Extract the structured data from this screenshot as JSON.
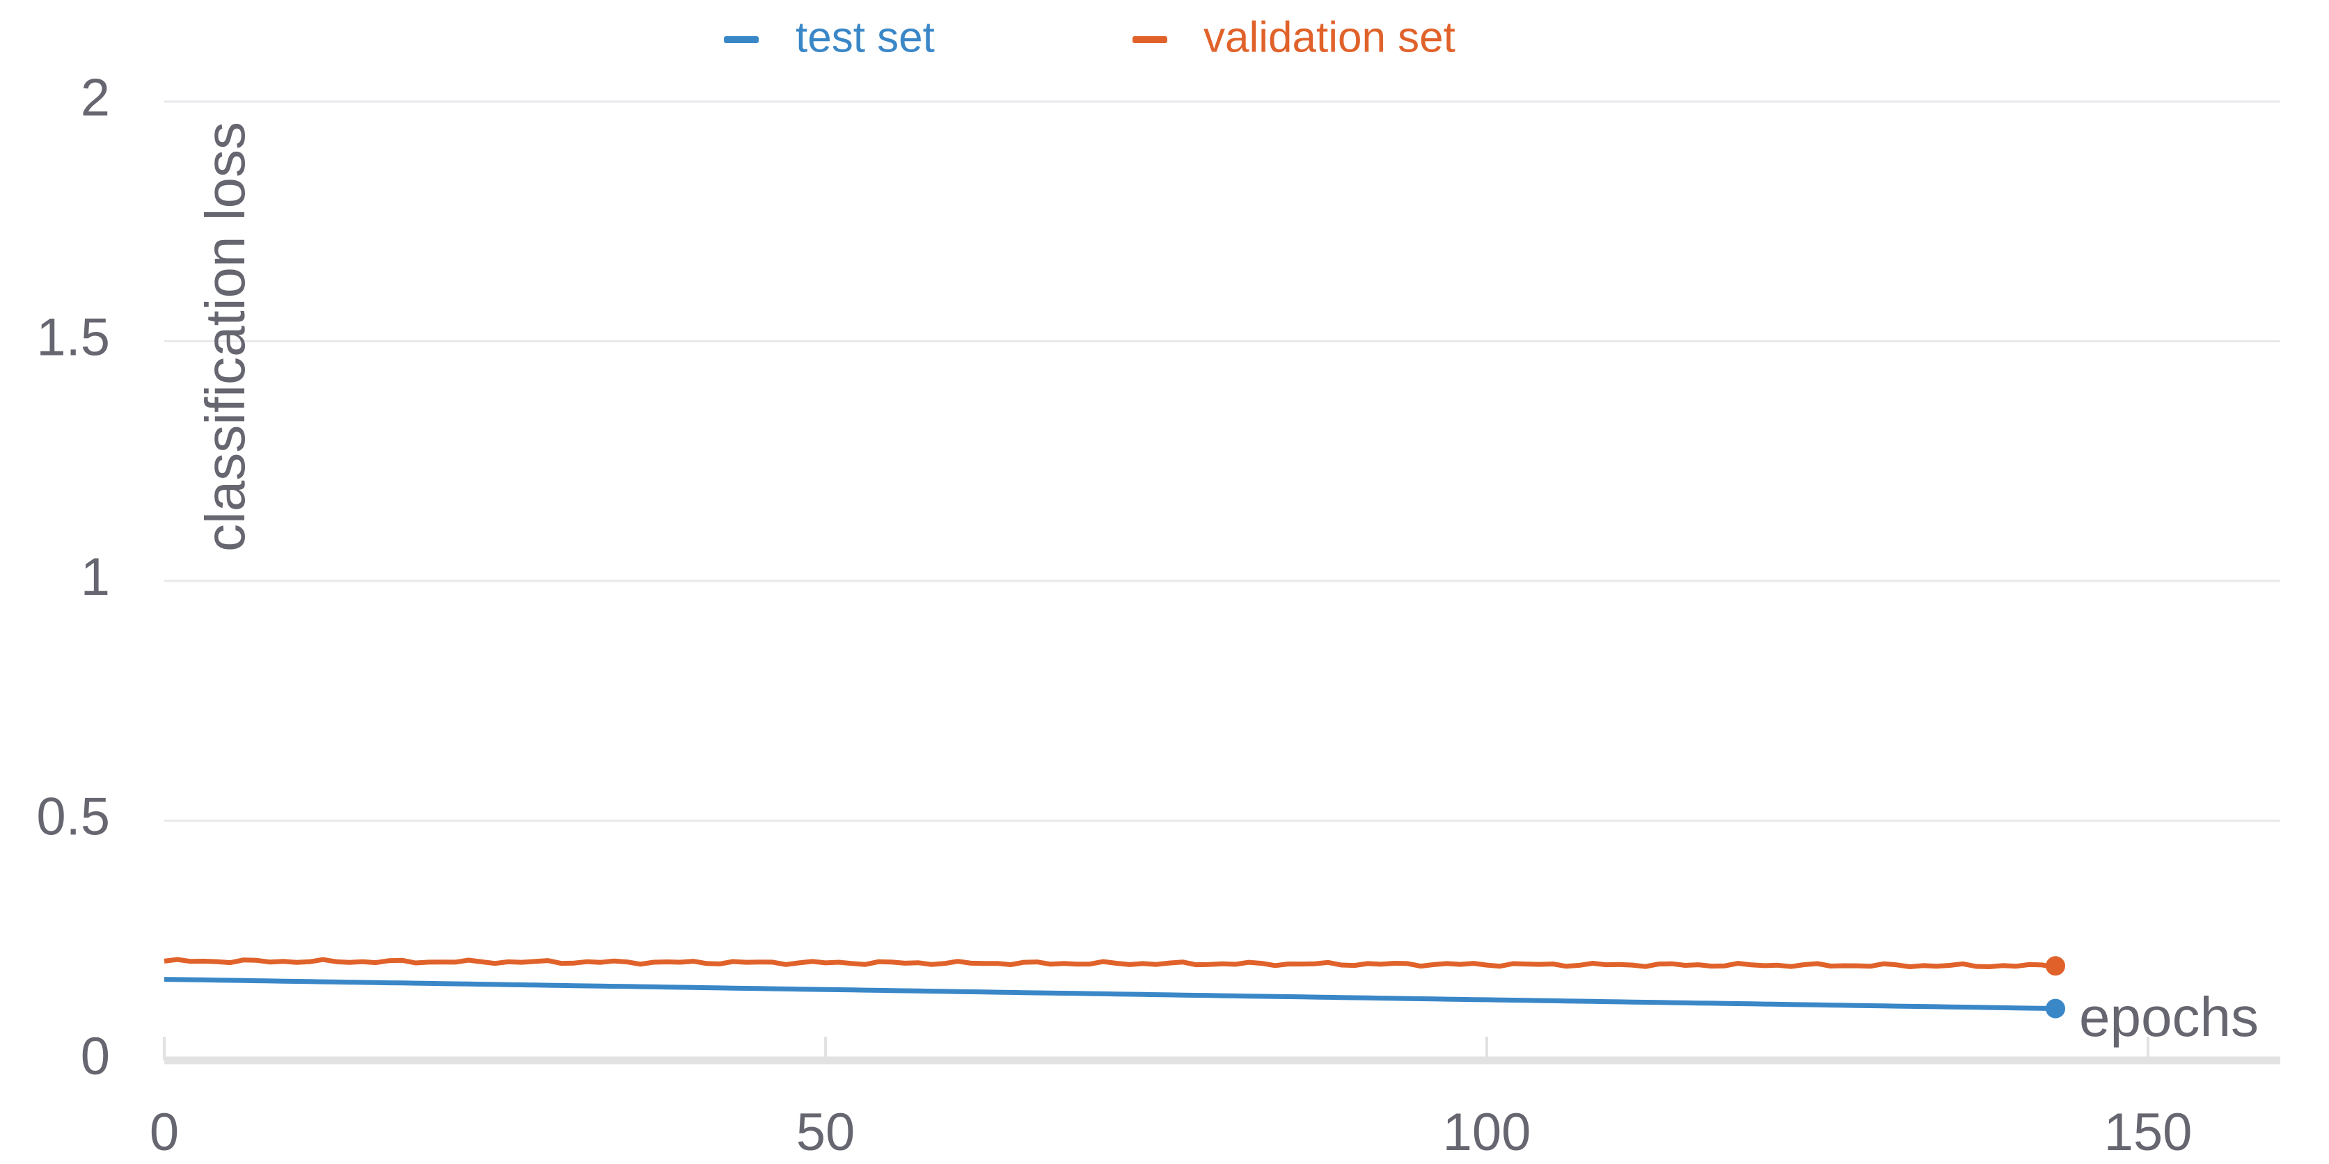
{
  "chart_data": {
    "type": "line",
    "title": "",
    "xlabel": "epochs",
    "ylabel": "classification loss",
    "xlim": [
      0,
      160
    ],
    "ylim": [
      0,
      2
    ],
    "x_ticks": [
      "0",
      "50",
      "100",
      "150"
    ],
    "y_ticks": [
      "0",
      "0.5",
      "1",
      "1.5",
      "2"
    ],
    "grid": true,
    "legend_position": "top-center",
    "series": [
      {
        "name": "test set",
        "color": "#3a87c8",
        "x_start": 0,
        "x_end": 143,
        "y_start": 0.169,
        "y_end": 0.108,
        "noise": 0
      },
      {
        "name": "validation set",
        "color": "#e0622a",
        "x_start": 0,
        "x_end": 143,
        "y_start": 0.207,
        "y_end": 0.197,
        "noise": 0.004
      }
    ]
  }
}
